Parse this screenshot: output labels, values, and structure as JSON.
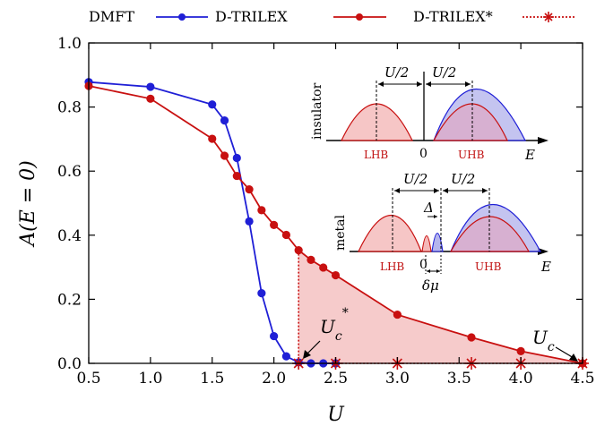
{
  "chart_data": {
    "type": "line",
    "xlabel": "U",
    "ylabel": "A(E = 0)",
    "xlim": [
      0.5,
      4.5
    ],
    "ylim": [
      0.0,
      1.0
    ],
    "xticks": [
      "0.5",
      "1.0",
      "1.5",
      "2.0",
      "2.5",
      "3.0",
      "3.5",
      "4.0",
      "4.5"
    ],
    "yticks": [
      "0.0",
      "0.2",
      "0.4",
      "0.6",
      "0.8",
      "1.0"
    ],
    "legend_position": "top",
    "series": [
      {
        "name": "DMFT",
        "color": "#1f1fd6",
        "x": [
          0.5,
          1.0,
          1.5,
          1.6,
          1.7,
          1.8,
          1.9,
          2.0,
          2.1,
          2.2,
          2.3,
          2.4,
          2.5
        ],
        "y": [
          0.878,
          0.863,
          0.808,
          0.758,
          0.641,
          0.443,
          0.219,
          0.085,
          0.022,
          0.003,
          0.0,
          0.0,
          0.0
        ]
      },
      {
        "name": "D-TRILEX",
        "color": "#c81010",
        "x": [
          0.5,
          1.0,
          1.5,
          1.6,
          1.7,
          1.8,
          1.9,
          2.0,
          2.1,
          2.2,
          2.3,
          2.4,
          2.5,
          3.0,
          3.6,
          4.0,
          4.5
        ],
        "y": [
          0.866,
          0.826,
          0.701,
          0.648,
          0.585,
          0.543,
          0.478,
          0.432,
          0.401,
          0.353,
          0.323,
          0.299,
          0.275,
          0.152,
          0.081,
          0.038,
          0.0
        ]
      },
      {
        "name": "D-TRILEX*",
        "color": "#c81010",
        "x": [
          2.2,
          2.5,
          3.0,
          3.6,
          4.0,
          4.5
        ],
        "y": [
          0.0,
          0.0,
          0.0,
          0.0,
          0.0,
          0.0
        ]
      }
    ],
    "annotations": [
      {
        "text": "U*c",
        "x": 2.2,
        "y": 0.0
      },
      {
        "text": "Uc",
        "x": 4.5,
        "y": 0.0
      }
    ],
    "inset": {
      "insulator_label": "insulator",
      "metal_label": "metal",
      "half_u": "U/2",
      "zero": "0",
      "energy": "E",
      "lhb": "LHB",
      "uhb": "UHB",
      "delta": "Δ",
      "delta_mu": "δμ"
    }
  }
}
